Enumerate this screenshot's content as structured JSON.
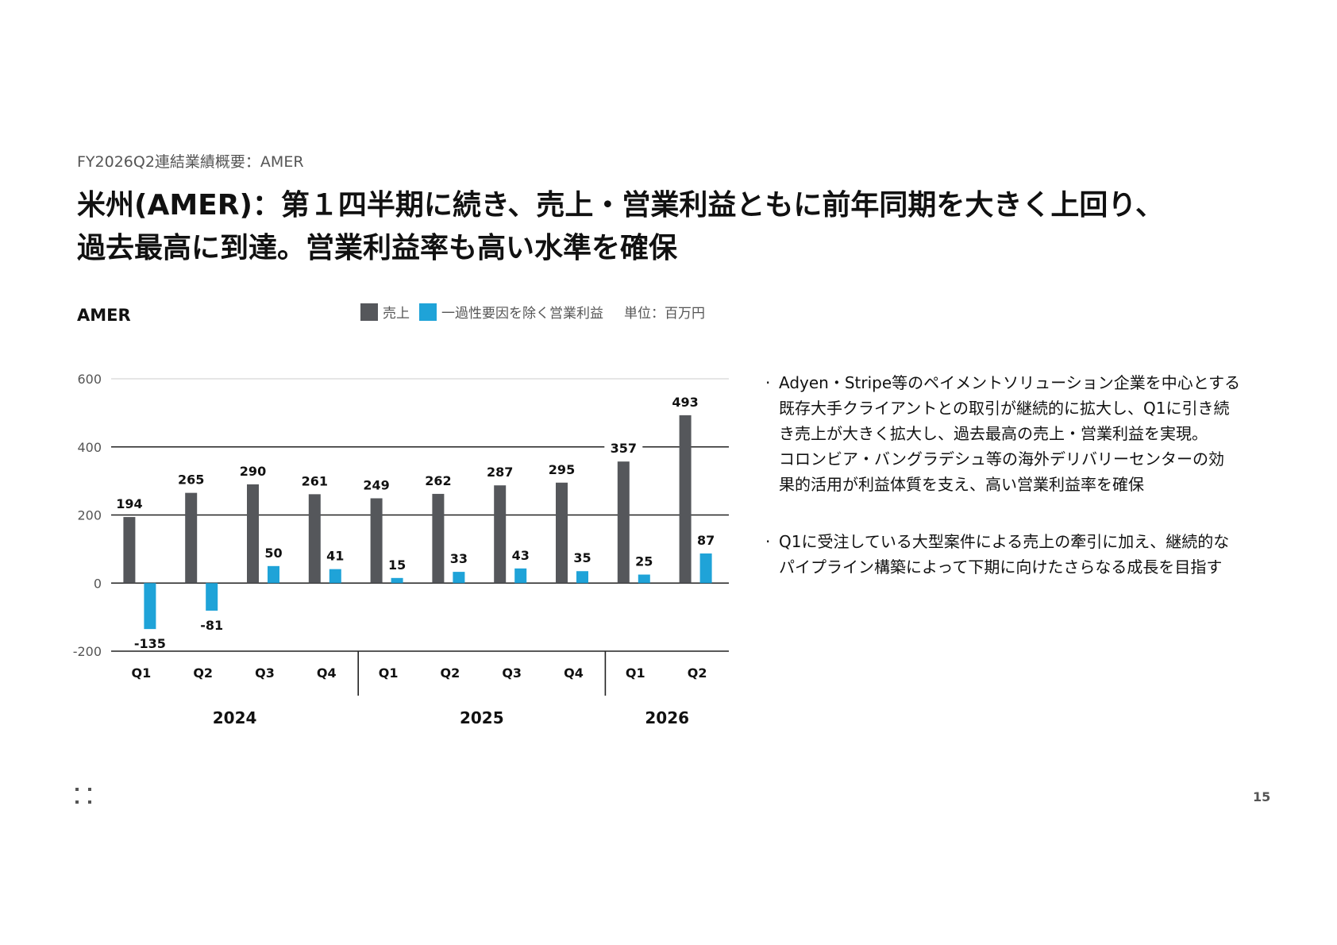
{
  "breadcrumb": "FY2026Q2連結業績概要：AMER",
  "title_lines": [
    "米州(AMER)：第１四半期に続き、売上・営業利益ともに前年同期を大きく上回り、",
    "過去最高に到達。営業利益率も高い水準を確保"
  ],
  "chart_label": "AMER",
  "legend": {
    "sales": "売上",
    "op_income": "一過性要因を除く営業利益",
    "unit": "単位：百万円"
  },
  "colors": {
    "sales": "#55575b",
    "op_income": "#1fa3d8",
    "grid": "#cccccc",
    "axis": "#222222"
  },
  "chart_data": {
    "type": "bar",
    "categories": [
      "Q1",
      "Q2",
      "Q3",
      "Q4",
      "Q1",
      "Q2",
      "Q3",
      "Q4",
      "Q1",
      "Q2"
    ],
    "year_groups": [
      {
        "label": "2024",
        "count": 4
      },
      {
        "label": "2025",
        "count": 4
      },
      {
        "label": "2026",
        "count": 2
      }
    ],
    "series": [
      {
        "name": "売上",
        "values": [
          194,
          265,
          290,
          261,
          249,
          262,
          287,
          295,
          357,
          493
        ]
      },
      {
        "name": "一過性要因を除く営業利益",
        "values": [
          -135,
          -81,
          50,
          41,
          15,
          33,
          43,
          35,
          25,
          87
        ]
      }
    ],
    "yticks": [
      600,
      400,
      200,
      0,
      -200
    ],
    "ylim": [
      -200,
      600
    ],
    "grid": true,
    "legend_position": "top-right"
  },
  "bullets": [
    {
      "lines": [
        "Adyen・Stripe等のペイメントソリューション企業を中心とする",
        "既存大手クライアントとの取引が継続的に拡大し、Q1に引き続",
        "き売上が大きく拡大し、過去最高の売上・営業利益を実現。",
        "コロンビア・バングラデシュ等の海外デリバリーセンターの効",
        "果的活用が利益体質を支え、高い営業利益率を確保"
      ]
    },
    {
      "lines": [
        "Q1に受注している大型案件による売上の牽引に加え、継続的な",
        "パイプライン構築によって下期に向けたさらなる成長を目指す"
      ]
    }
  ],
  "page_number": "15"
}
